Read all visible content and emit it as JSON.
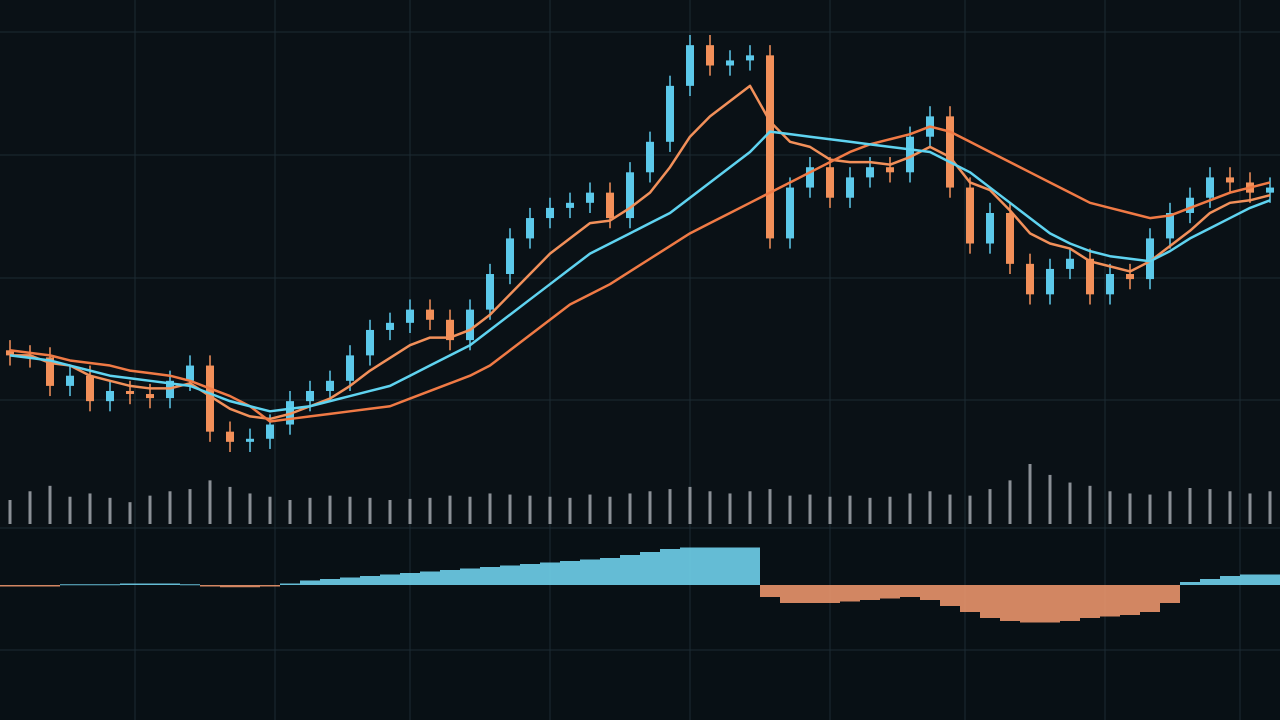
{
  "chart_data": [
    {
      "type": "candlestick",
      "up_color": "#5cc9ea",
      "down_color": "#f2905a",
      "open": [
        31,
        30,
        29.6,
        24,
        26,
        21,
        23,
        22.4,
        21.6,
        25,
        28,
        15,
        13,
        13.6,
        16.4,
        21,
        23,
        25,
        30,
        35,
        36.4,
        39,
        37,
        33,
        39,
        46,
        53,
        57,
        59,
        60,
        62,
        57,
        66,
        72,
        83,
        91,
        87,
        88,
        89,
        53,
        63,
        67,
        61,
        65,
        67,
        66,
        73,
        77,
        63,
        52,
        58,
        48,
        42,
        47,
        49,
        42,
        46,
        45,
        53,
        58,
        61,
        65,
        64,
        62
      ],
      "high": [
        33,
        32,
        31.6,
        28,
        28,
        25,
        25,
        24.4,
        27,
        30,
        30,
        17,
        15.6,
        18.4,
        23,
        25,
        27,
        32,
        37,
        38.4,
        41,
        41,
        39,
        41,
        48,
        55,
        59,
        61,
        62,
        64,
        64,
        68,
        74,
        85,
        93,
        93,
        90,
        91,
        91,
        65,
        69,
        69,
        67,
        69,
        69,
        75,
        79,
        79,
        65,
        60,
        60,
        50,
        49,
        51,
        51,
        48,
        48,
        55,
        60,
        63,
        67,
        67,
        66,
        65
      ],
      "low": [
        28,
        27.6,
        22,
        22,
        19,
        19,
        20.4,
        19.6,
        19.6,
        23,
        13,
        11,
        11,
        11.6,
        14.4,
        19,
        21,
        23,
        28,
        33,
        34.4,
        35,
        31,
        31,
        37,
        44,
        51,
        55,
        57,
        58,
        55,
        55,
        64,
        70,
        81,
        85,
        85,
        86,
        51,
        51,
        61,
        59,
        59,
        63,
        64,
        64,
        71,
        61,
        50,
        50,
        46,
        40,
        40,
        45,
        40,
        40,
        43,
        43,
        51,
        56,
        59,
        62,
        60,
        60
      ],
      "close": [
        30,
        29.6,
        24,
        26,
        21,
        23,
        22.4,
        21.6,
        25,
        28,
        15,
        13,
        13.6,
        16.4,
        21,
        23,
        25,
        30,
        35,
        36.4,
        39,
        37,
        33,
        39,
        46,
        53,
        57,
        59,
        60,
        62,
        57,
        66,
        72,
        83,
        91,
        87,
        88,
        89,
        53,
        63,
        67,
        61,
        65,
        67,
        66,
        73,
        77,
        63,
        52,
        58,
        48,
        42,
        47,
        49,
        42,
        46,
        45,
        53,
        58,
        61,
        65,
        64,
        62,
        63
      ],
      "series": [
        {
          "color": "#f2905a",
          "values": [
            30,
            30,
            28.5,
            28,
            26,
            25,
            24,
            23.5,
            23.5,
            24.5,
            22,
            19.5,
            18,
            17.5,
            18.5,
            20,
            21.5,
            24,
            27,
            29.5,
            32,
            33.5,
            33.5,
            35,
            38,
            42,
            46,
            50,
            53,
            56,
            56.5,
            59,
            62,
            67,
            73,
            77,
            80,
            83,
            76,
            72,
            71,
            68.5,
            68,
            68,
            67.5,
            69,
            71,
            69,
            64,
            62.5,
            58.5,
            54,
            52,
            51,
            48.5,
            47.5,
            46.5,
            48.5,
            51.5,
            54.5,
            58,
            60,
            60.5,
            61.5
          ]
        },
        {
          "color": "#f07a45",
          "values": [
            31,
            30.5,
            30,
            29,
            28.5,
            28,
            27,
            26.5,
            26,
            25,
            23.5,
            22,
            20,
            17,
            17.5,
            18,
            18.5,
            19,
            19.5,
            20,
            21.5,
            23,
            24.5,
            26,
            28,
            31,
            34,
            37,
            40,
            42,
            44,
            46.5,
            49,
            51.5,
            54,
            56,
            58,
            60,
            62,
            64,
            66,
            68,
            70,
            71.5,
            72.5,
            73.5,
            75,
            74,
            72,
            70,
            68,
            66,
            64,
            62,
            60,
            59,
            58,
            57,
            57.5,
            59,
            60.5,
            62,
            63,
            64
          ]
        },
        {
          "color": "#5fd3f0",
          "values": [
            30,
            29.5,
            29,
            28,
            27,
            26,
            25.5,
            25,
            24.5,
            24,
            22.5,
            21,
            20,
            19,
            19.5,
            20,
            21,
            22,
            23,
            24,
            26,
            28,
            30,
            32,
            35,
            38,
            41,
            44,
            47,
            50,
            52,
            54,
            56,
            58,
            61,
            64,
            67,
            70,
            74,
            73.5,
            73,
            72.5,
            72,
            71.5,
            71,
            70.5,
            70,
            68,
            66,
            63,
            60,
            57,
            54,
            52,
            50.5,
            49.5,
            49,
            48.5,
            50.5,
            53,
            55,
            57,
            59,
            60.5
          ]
        }
      ]
    },
    {
      "type": "bar",
      "color": "#8b9096",
      "values": [
        22,
        30,
        35,
        25,
        28,
        24,
        20,
        26,
        30,
        32,
        40,
        34,
        28,
        25,
        22,
        24,
        26,
        25,
        24,
        22,
        23,
        24,
        26,
        25,
        28,
        27,
        26,
        25,
        24,
        27,
        25,
        28,
        30,
        32,
        34,
        30,
        28,
        30,
        32,
        26,
        27,
        25,
        26,
        24,
        25,
        28,
        30,
        27,
        26,
        32,
        40,
        55,
        45,
        38,
        35,
        30,
        28,
        27,
        30,
        33,
        32,
        30,
        28,
        30
      ]
    },
    {
      "type": "histogram",
      "up_color": "#6fcfea",
      "down_color": "#e9946a",
      "values": [
        -1,
        -1,
        -1,
        0.5,
        0.5,
        0.5,
        1,
        1,
        1,
        0.5,
        -1,
        -1.5,
        -1.5,
        -1,
        1,
        3,
        4,
        5,
        6,
        7,
        8,
        9,
        10,
        11,
        12,
        13,
        14,
        15,
        16,
        17,
        18,
        20,
        22,
        24,
        25,
        25,
        25,
        25,
        -8,
        -12,
        -12,
        -12,
        -11,
        -10,
        -9,
        -8,
        -10,
        -14,
        -18,
        -22,
        -24,
        -25,
        -25,
        -24,
        -22,
        -21,
        -20,
        -18,
        -12,
        2,
        4,
        6,
        7,
        7
      ]
    }
  ]
}
